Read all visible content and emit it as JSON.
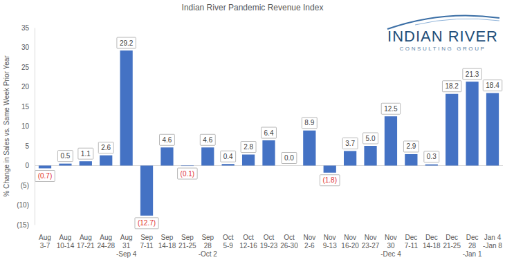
{
  "chart_data": {
    "type": "bar",
    "title": "Indian River Pandemic Revenue Index",
    "y_label": "% Change in Sales vs. Same Week Prior Year",
    "annotations": [
      "INDIAN RIVER",
      "CONSULTING GROUP"
    ],
    "categories": [
      "Aug\n3-7",
      "Aug\n10-14",
      "Aug\n17-21",
      "Aug\n24-28",
      "Aug\n31\n-Sep 4",
      "Sep\n7-11",
      "Sep\n14-18",
      "Sep\n21-25",
      "Sep\n28\n-Oct 2",
      "Oct\n5-9",
      "Oct\n12-16",
      "Oct\n19-23",
      "Oct\n26-30",
      "Nov\n2-6",
      "Nov\n9-13",
      "Nov\n16-20",
      "Nov\n23-27",
      "Nov\n30\n-Dec 4",
      "Dec\n7-11",
      "Dec\n14-18",
      "Dec\n21-25",
      "Dec\n28\n-Jan 1",
      "Jan 4\n-Jan 8"
    ],
    "values": [
      -0.7,
      0.5,
      1.1,
      2.6,
      29.2,
      -12.7,
      4.6,
      -0.1,
      4.6,
      0.4,
      2.8,
      6.4,
      0.0,
      8.9,
      -1.8,
      3.7,
      5.0,
      12.5,
      2.9,
      0.3,
      18.2,
      21.3,
      18.4
    ],
    "value_labels": [
      "(0.7)",
      "0.5",
      "1.1",
      "2.6",
      "29.2",
      "(12.7)",
      "4.6",
      "(0.1)",
      "4.6",
      "0.4",
      "2.8",
      "6.4",
      "0.0",
      "8.9",
      "(1.8)",
      "3.7",
      "5.0",
      "12.5",
      "2.9",
      "0.3",
      "18.2",
      "21.3",
      "18.4"
    ],
    "color": "#4472c4",
    "data_labels": true,
    "grid": false,
    "ylim": [
      -15,
      35
    ],
    "yticks": [
      {
        "value": -15,
        "label": "(15)"
      },
      {
        "value": -10,
        "label": "(10)"
      },
      {
        "value": -5,
        "label": "(5)"
      },
      0,
      5,
      10,
      15,
      20,
      25,
      30,
      35
    ]
  }
}
